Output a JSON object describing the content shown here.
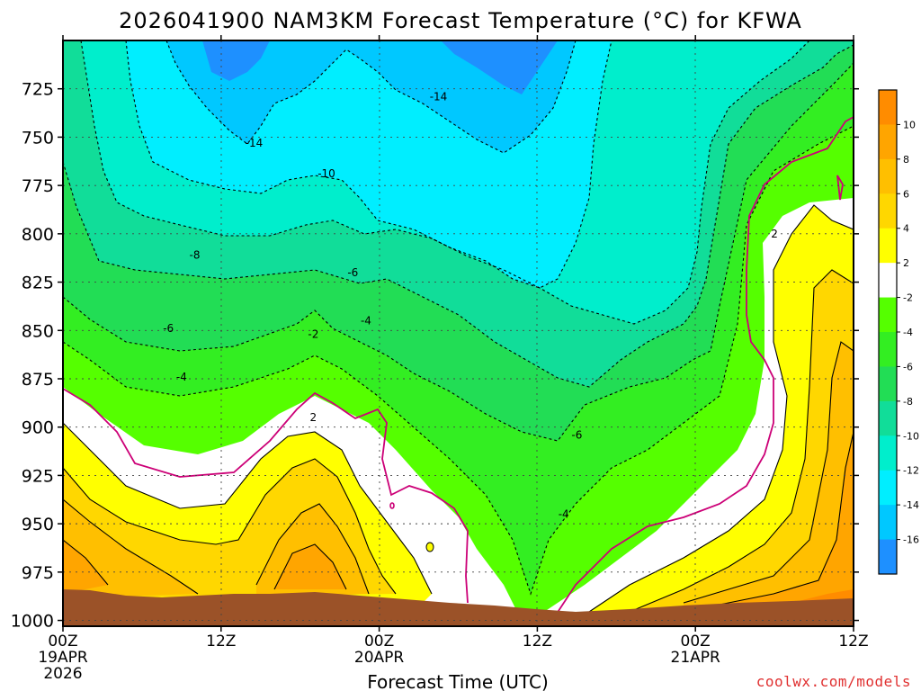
{
  "chart_data": {
    "type": "heatmap",
    "title": "2026041900 NAM3KM Forecast Temperature (°C) for KFWA",
    "xlabel": "Forecast Time (UTC)",
    "ylabel": "",
    "x_ticks": [
      {
        "hour": 0,
        "label": "00Z",
        "sub": [
          "19APR",
          "2026"
        ]
      },
      {
        "hour": 12,
        "label": "12Z",
        "sub": []
      },
      {
        "hour": 24,
        "label": "00Z",
        "sub": [
          "20APR"
        ]
      },
      {
        "hour": 36,
        "label": "12Z",
        "sub": []
      },
      {
        "hour": 48,
        "label": "00Z",
        "sub": [
          "21APR"
        ]
      },
      {
        "hour": 60,
        "label": "12Z",
        "sub": []
      }
    ],
    "x_range": [
      0,
      60
    ],
    "y_ticks": [
      725,
      750,
      775,
      800,
      825,
      850,
      875,
      900,
      925,
      950,
      975,
      1000
    ],
    "y_range": [
      700,
      1003
    ],
    "grid": true,
    "colorbar": {
      "placement": "right",
      "bins": [
        {
          "lo": 10,
          "hi": 12,
          "color": "#ff8c00"
        },
        {
          "lo": 8,
          "hi": 10,
          "color": "#ffa500"
        },
        {
          "lo": 6,
          "hi": 8,
          "color": "#ffbf00"
        },
        {
          "lo": 4,
          "hi": 6,
          "color": "#ffd700"
        },
        {
          "lo": 2,
          "hi": 4,
          "color": "#ffff00"
        },
        {
          "lo": -2,
          "hi": 2,
          "color": "#ffffff"
        },
        {
          "lo": -4,
          "hi": -2,
          "color": "#55ff00"
        },
        {
          "lo": -6,
          "hi": -4,
          "color": "#33ee22"
        },
        {
          "lo": -8,
          "hi": -6,
          "color": "#22dd55"
        },
        {
          "lo": -10,
          "hi": -8,
          "color": "#11dd99"
        },
        {
          "lo": -12,
          "hi": -10,
          "color": "#00eecc"
        },
        {
          "lo": -14,
          "hi": -12,
          "color": "#00eeff"
        },
        {
          "lo": -16,
          "hi": -14,
          "color": "#00c8ff"
        },
        {
          "lo": -18,
          "hi": -16,
          "color": "#1e90ff"
        }
      ],
      "labels": [
        "10",
        "8",
        "6",
        "4",
        "2",
        "-2",
        "-4",
        "-6",
        "-8",
        "-10",
        "-12",
        "-14",
        "-16"
      ]
    },
    "contour_labels": [
      {
        "text": "-14",
        "hour": 14.5,
        "p": 753
      },
      {
        "text": "-14",
        "hour": 28.5,
        "p": 729
      },
      {
        "text": "-10",
        "hour": 20,
        "p": 769
      },
      {
        "text": "-8",
        "hour": 10,
        "p": 811
      },
      {
        "text": "-6",
        "hour": 22,
        "p": 820
      },
      {
        "text": "-6",
        "hour": 8,
        "p": 849
      },
      {
        "text": "-4",
        "hour": 23,
        "p": 845
      },
      {
        "text": "-4",
        "hour": 9,
        "p": 874
      },
      {
        "text": "-2",
        "hour": 19,
        "p": 852
      },
      {
        "text": "2",
        "hour": 19,
        "p": 895
      },
      {
        "text": "-6",
        "hour": 39,
        "p": 904
      },
      {
        "text": "-4",
        "hour": 38,
        "p": 945
      },
      {
        "text": "2",
        "hour": 54,
        "p": 800
      }
    ],
    "colors": {
      "magenta": "#cc0077",
      "ground": "#9b5228",
      "site": "#e03030"
    }
  },
  "site_credit": "coolwx.com/models"
}
